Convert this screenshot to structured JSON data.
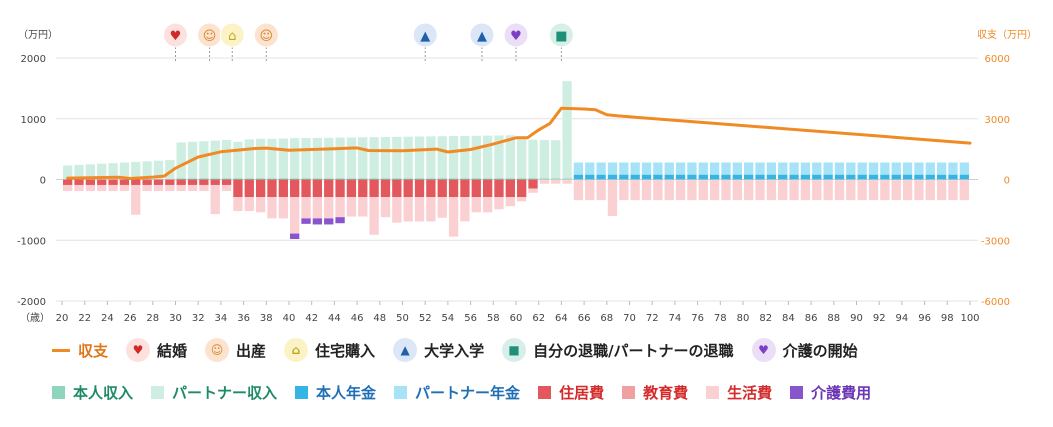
{
  "chart_data": {
    "type": "bar",
    "units": {
      "left": "（万円）",
      "right": "収支（万円）",
      "x": "（歳）"
    },
    "x_ticks": [
      20,
      22,
      24,
      26,
      28,
      30,
      32,
      34,
      36,
      38,
      40,
      42,
      44,
      46,
      48,
      50,
      52,
      54,
      56,
      58,
      60,
      62,
      64,
      66,
      68,
      70,
      72,
      74,
      76,
      78,
      80,
      82,
      84,
      86,
      88,
      90,
      92,
      94,
      96,
      98,
      100
    ],
    "y_left": {
      "ticks": [
        2000,
        1000,
        0,
        -1000,
        -2000
      ],
      "range": [
        -2000,
        2000
      ]
    },
    "y_right": {
      "ticks": [
        6000,
        3000,
        0,
        -3000,
        -6000
      ],
      "range": [
        -6000,
        6000
      ]
    },
    "grid": true,
    "ages": [
      20,
      21,
      22,
      23,
      24,
      25,
      26,
      27,
      28,
      29,
      30,
      31,
      32,
      33,
      34,
      35,
      36,
      37,
      38,
      39,
      40,
      41,
      42,
      43,
      44,
      45,
      46,
      47,
      48,
      49,
      50,
      51,
      52,
      53,
      54,
      55,
      56,
      57,
      58,
      59,
      60,
      61,
      62,
      63,
      64,
      65,
      66,
      67,
      68,
      69,
      70,
      71,
      72,
      73,
      74,
      75,
      76,
      77,
      78,
      79,
      80,
      81,
      82,
      83,
      84,
      85,
      86,
      87,
      88,
      89,
      90,
      91,
      92,
      93,
      94,
      95,
      96,
      97,
      98,
      99
    ],
    "series": [
      {
        "name": "本人収入",
        "color": "#8fd4bd",
        "stack": "pos",
        "values": [
          0,
          0,
          0,
          0,
          0,
          0,
          0,
          0,
          0,
          0,
          20,
          20,
          20,
          20,
          20,
          20,
          20,
          20,
          20,
          20,
          20,
          20,
          20,
          20,
          20,
          20,
          20,
          20,
          20,
          20,
          20,
          20,
          20,
          20,
          20,
          20,
          20,
          20,
          20,
          20,
          20,
          20,
          20,
          20,
          20,
          0,
          0,
          0,
          0,
          0,
          0,
          0,
          0,
          0,
          0,
          0,
          0,
          0,
          0,
          0,
          0,
          0,
          0,
          0,
          0,
          0,
          0,
          0,
          0,
          0,
          0,
          0,
          0,
          0,
          0,
          0,
          0,
          0,
          0,
          0
        ]
      },
      {
        "name": "パートナー収入",
        "color": "#cfeee2",
        "stack": "pos",
        "values": [
          230,
          240,
          250,
          260,
          270,
          280,
          290,
          300,
          310,
          320,
          590,
          600,
          610,
          620,
          630,
          600,
          640,
          650,
          650,
          655,
          660,
          662,
          665,
          667,
          670,
          672,
          675,
          678,
          680,
          682,
          685,
          687,
          690,
          692,
          695,
          697,
          700,
          702,
          705,
          708,
          640,
          635,
          630,
          628,
          1600,
          0,
          0,
          0,
          0,
          0,
          0,
          0,
          0,
          0,
          0,
          0,
          0,
          0,
          0,
          0,
          0,
          0,
          0,
          0,
          0,
          0,
          0,
          0,
          0,
          0,
          0,
          0,
          0,
          0,
          0,
          0,
          0,
          0,
          0,
          0
        ]
      },
      {
        "name": "本人年金",
        "color": "#34b6e4",
        "stack": "pos",
        "values": [
          0,
          0,
          0,
          0,
          0,
          0,
          0,
          0,
          0,
          0,
          0,
          0,
          0,
          0,
          0,
          0,
          0,
          0,
          0,
          0,
          0,
          0,
          0,
          0,
          0,
          0,
          0,
          0,
          0,
          0,
          0,
          0,
          0,
          0,
          0,
          0,
          0,
          0,
          0,
          0,
          0,
          0,
          0,
          0,
          0,
          80,
          80,
          80,
          80,
          80,
          80,
          80,
          80,
          80,
          80,
          80,
          80,
          80,
          80,
          80,
          80,
          80,
          80,
          80,
          80,
          80,
          80,
          80,
          80,
          80,
          80,
          80,
          80,
          80,
          80,
          80,
          80,
          80,
          80,
          80
        ]
      },
      {
        "name": "パートナー年金",
        "color": "#a6e3f7",
        "stack": "pos",
        "values": [
          0,
          0,
          0,
          0,
          0,
          0,
          0,
          0,
          0,
          0,
          0,
          0,
          0,
          0,
          0,
          0,
          0,
          0,
          0,
          0,
          0,
          0,
          0,
          0,
          0,
          0,
          0,
          0,
          0,
          0,
          0,
          0,
          0,
          0,
          0,
          0,
          0,
          0,
          0,
          0,
          0,
          0,
          0,
          0,
          0,
          200,
          200,
          200,
          200,
          200,
          200,
          200,
          200,
          200,
          200,
          200,
          200,
          200,
          200,
          200,
          200,
          200,
          200,
          200,
          200,
          200,
          200,
          200,
          200,
          200,
          200,
          200,
          200,
          200,
          200,
          200,
          200,
          200,
          200,
          200
        ]
      },
      {
        "name": "住居費",
        "color": "#e2585c",
        "stack": "neg",
        "values": [
          -90,
          -90,
          -90,
          -90,
          -90,
          -90,
          -90,
          -90,
          -90,
          -90,
          -90,
          -90,
          -90,
          -90,
          -90,
          -290,
          -290,
          -290,
          -290,
          -290,
          -290,
          -290,
          -290,
          -290,
          -290,
          -290,
          -290,
          -290,
          -290,
          -290,
          -290,
          -290,
          -290,
          -290,
          -290,
          -290,
          -290,
          -290,
          -290,
          -290,
          -290,
          -150,
          0,
          0,
          0,
          0,
          0,
          0,
          0,
          0,
          0,
          0,
          0,
          0,
          0,
          0,
          0,
          0,
          0,
          0,
          0,
          0,
          0,
          0,
          0,
          0,
          0,
          0,
          0,
          0,
          0,
          0,
          0,
          0,
          0,
          0,
          0,
          0,
          0,
          0
        ]
      },
      {
        "name": "教育費",
        "color": "#f0a0a0",
        "stack": "neg",
        "values": [
          0,
          0,
          0,
          0,
          0,
          0,
          0,
          0,
          0,
          0,
          0,
          0,
          0,
          0,
          0,
          0,
          0,
          0,
          0,
          0,
          0,
          0,
          0,
          0,
          0,
          0,
          0,
          0,
          0,
          0,
          0,
          0,
          0,
          0,
          0,
          0,
          0,
          0,
          0,
          0,
          0,
          0,
          0,
          0,
          0,
          0,
          0,
          0,
          0,
          0,
          0,
          0,
          0,
          0,
          0,
          0,
          0,
          0,
          0,
          0,
          0,
          0,
          0,
          0,
          0,
          0,
          0,
          0,
          0,
          0,
          0,
          0,
          0,
          0,
          0,
          0,
          0,
          0,
          0,
          0
        ]
      },
      {
        "name": "生活費",
        "color": "#fbd0d2",
        "stack": "neg",
        "values": [
          -100,
          -100,
          -100,
          -100,
          -100,
          -100,
          -490,
          -100,
          -100,
          -100,
          -100,
          -100,
          -100,
          -480,
          -100,
          -230,
          -230,
          -250,
          -350,
          -350,
          -600,
          -350,
          -350,
          -350,
          -330,
          -320,
          -320,
          -620,
          -330,
          -420,
          -400,
          -400,
          -400,
          -340,
          -650,
          -400,
          -250,
          -250,
          -200,
          -150,
          -70,
          -70,
          -70,
          -70,
          -70,
          -340,
          -340,
          -340,
          -600,
          -340,
          -340,
          -340,
          -340,
          -340,
          -340,
          -340,
          -340,
          -340,
          -340,
          -340,
          -340,
          -340,
          -340,
          -340,
          -340,
          -340,
          -340,
          -340,
          -340,
          -340,
          -340,
          -340,
          -340,
          -340,
          -340,
          -340,
          -340,
          -340,
          -340,
          -340
        ]
      },
      {
        "name": "介護費用",
        "color": "#8855cc",
        "stack": "neg",
        "values": [
          0,
          0,
          0,
          0,
          0,
          0,
          0,
          0,
          0,
          0,
          0,
          0,
          0,
          0,
          0,
          0,
          0,
          0,
          0,
          0,
          -90,
          -90,
          -100,
          -100,
          -100,
          0,
          0,
          0,
          0,
          0,
          0,
          0,
          0,
          0,
          0,
          0,
          0,
          0,
          0,
          0,
          0,
          0,
          0,
          0,
          0,
          0,
          0,
          0,
          0,
          0,
          0,
          0,
          0,
          0,
          0,
          0,
          0,
          0,
          0,
          0,
          0,
          0,
          0,
          0,
          0,
          0,
          0,
          0,
          0,
          0,
          0,
          0,
          0,
          0,
          0,
          0,
          0,
          0,
          0,
          0
        ]
      }
    ],
    "line": {
      "name": "収支",
      "color": "#f08a24",
      "axis": "right",
      "points": [
        [
          20.5,
          70
        ],
        [
          25,
          115
        ],
        [
          26,
          50
        ],
        [
          28,
          120
        ],
        [
          29,
          170
        ],
        [
          30,
          560
        ],
        [
          32,
          1110
        ],
        [
          34,
          1370
        ],
        [
          37,
          1530
        ],
        [
          38,
          1550
        ],
        [
          40,
          1440
        ],
        [
          44,
          1520
        ],
        [
          46,
          1560
        ],
        [
          47,
          1430
        ],
        [
          50,
          1420
        ],
        [
          53,
          1500
        ],
        [
          54,
          1360
        ],
        [
          56,
          1480
        ],
        [
          58,
          1750
        ],
        [
          60,
          2060
        ],
        [
          61,
          2060
        ],
        [
          62,
          2450
        ],
        [
          63,
          2770
        ],
        [
          64,
          3520
        ],
        [
          66,
          3480
        ],
        [
          67,
          3440
        ],
        [
          68,
          3200
        ],
        [
          69,
          3140
        ],
        [
          100,
          1800
        ]
      ]
    },
    "events": [
      {
        "age": 30,
        "name": "結婚",
        "icon": "heart-icon",
        "glyph": "♥",
        "bg": "#fde1df",
        "fg": "#d12828"
      },
      {
        "age": 33,
        "name": "出産",
        "icon": "baby-icon",
        "glyph": "☺",
        "bg": "#fce3cf",
        "fg": "#d9852a"
      },
      {
        "age": 35,
        "name": "住宅購入",
        "icon": "house-icon",
        "glyph": "⌂",
        "bg": "#fbf3c6",
        "fg": "#c4a41f"
      },
      {
        "age": 38,
        "name": "出産",
        "icon": "baby-icon",
        "glyph": "☺",
        "bg": "#fce3cf",
        "fg": "#d9852a"
      },
      {
        "age": 52,
        "name": "大学入学",
        "icon": "graduation-cap-icon",
        "glyph": "▲",
        "bg": "#dbe7f6",
        "fg": "#1f5fae"
      },
      {
        "age": 57,
        "name": "大学入学",
        "icon": "graduation-cap-icon",
        "glyph": "▲",
        "bg": "#dbe7f6",
        "fg": "#1f5fae"
      },
      {
        "age": 60,
        "name": "介護の開始",
        "icon": "care-hand-icon",
        "glyph": "♥",
        "bg": "#ebdff8",
        "fg": "#7a3fc2"
      },
      {
        "age": 64,
        "name": "自分の退職/パートナーの退職",
        "icon": "briefcase-icon",
        "glyph": "■",
        "bg": "#d8efe9",
        "fg": "#1f8f77"
      }
    ]
  },
  "legend_top": [
    {
      "type": "line",
      "label": "収支",
      "color": "#f08a24",
      "text_color": "#e0761a"
    },
    {
      "type": "event",
      "label": "結婚",
      "icon": "heart-icon",
      "glyph": "♥",
      "bg": "#fde1df",
      "fg": "#d12828",
      "text_color": "#222222"
    },
    {
      "type": "event",
      "label": "出産",
      "icon": "baby-icon",
      "glyph": "☺",
      "bg": "#fce3cf",
      "fg": "#d9852a",
      "text_color": "#222222"
    },
    {
      "type": "event",
      "label": "住宅購入",
      "icon": "house-icon",
      "glyph": "⌂",
      "bg": "#fbf3c6",
      "fg": "#c4a41f",
      "text_color": "#222222"
    },
    {
      "type": "event",
      "label": "大学入学",
      "icon": "graduation-cap-icon",
      "glyph": "▲",
      "bg": "#dbe7f6",
      "fg": "#1f5fae",
      "text_color": "#222222"
    },
    {
      "type": "event",
      "label": "自分の退職/パートナーの退職",
      "icon": "briefcase-icon",
      "glyph": "■",
      "bg": "#d8efe9",
      "fg": "#1f8f77",
      "text_color": "#222222"
    },
    {
      "type": "event",
      "label": "介護の開始",
      "icon": "care-hand-icon",
      "glyph": "♥",
      "bg": "#ebdff8",
      "fg": "#7a3fc2",
      "text_color": "#222222"
    }
  ],
  "legend_bottom": [
    {
      "label": "本人収入",
      "color": "#8fd4bd",
      "text_color": "#1e8a66"
    },
    {
      "label": "パートナー収入",
      "color": "#cfeee2",
      "text_color": "#1e8a66"
    },
    {
      "label": "本人年金",
      "color": "#34b6e4",
      "text_color": "#1f6fb5"
    },
    {
      "label": "パートナー年金",
      "color": "#a6e3f7",
      "text_color": "#1f6fb5"
    },
    {
      "label": "住居費",
      "color": "#e2585c",
      "text_color": "#d42a2a"
    },
    {
      "label": "教育費",
      "color": "#f0a0a0",
      "text_color": "#d42a2a"
    },
    {
      "label": "生活費",
      "color": "#fbd0d2",
      "text_color": "#d42a2a"
    },
    {
      "label": "介護費用",
      "color": "#8855cc",
      "text_color": "#6b35b5"
    }
  ]
}
